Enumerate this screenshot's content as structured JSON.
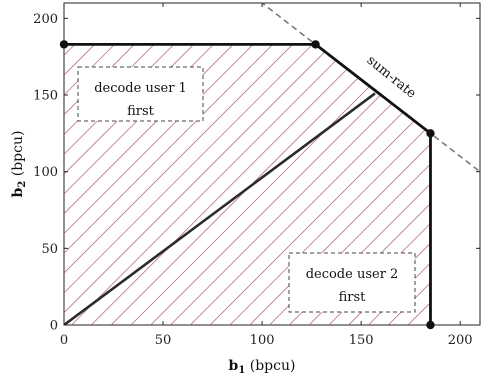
{
  "chart_data": {
    "type": "area",
    "xlabel": {
      "main": "b",
      "sub": "1",
      "unit": "(bpcu)"
    },
    "ylabel": {
      "main": "b",
      "sub": "2",
      "unit": "(bpcu)"
    },
    "xlim": [
      0,
      210
    ],
    "ylim": [
      0,
      210
    ],
    "x_ticks": [
      0,
      50,
      100,
      150,
      200
    ],
    "y_ticks": [
      0,
      50,
      100,
      150,
      200
    ],
    "grid": false,
    "region_boundary": [
      {
        "x": 0,
        "y": 183
      },
      {
        "x": 127,
        "y": 183
      },
      {
        "x": 185,
        "y": 125
      },
      {
        "x": 185,
        "y": 0
      },
      {
        "x": 0,
        "y": 0
      }
    ],
    "corner_points": [
      {
        "x": 0,
        "y": 183
      },
      {
        "x": 127,
        "y": 183
      },
      {
        "x": 185,
        "y": 125
      },
      {
        "x": 185,
        "y": 0
      }
    ],
    "diagonal_line": [
      {
        "x": 0,
        "y": 0
      },
      {
        "x": 157,
        "y": 151
      }
    ],
    "sum_rate_line": [
      {
        "x": 99,
        "y": 211
      },
      {
        "x": 210,
        "y": 100
      }
    ],
    "annotations": [
      {
        "id": "decode1",
        "lines": [
          "decode user 1",
          "first"
        ]
      },
      {
        "id": "decode2",
        "lines": [
          "decode user 2",
          "first"
        ]
      },
      {
        "id": "sumrate",
        "text": "sum-rate"
      }
    ],
    "colors": {
      "hatch": "#a5524e",
      "boundary": "#111111",
      "diagonal": "#2b2b2b",
      "sum_rate": "#7a7a7a"
    }
  }
}
